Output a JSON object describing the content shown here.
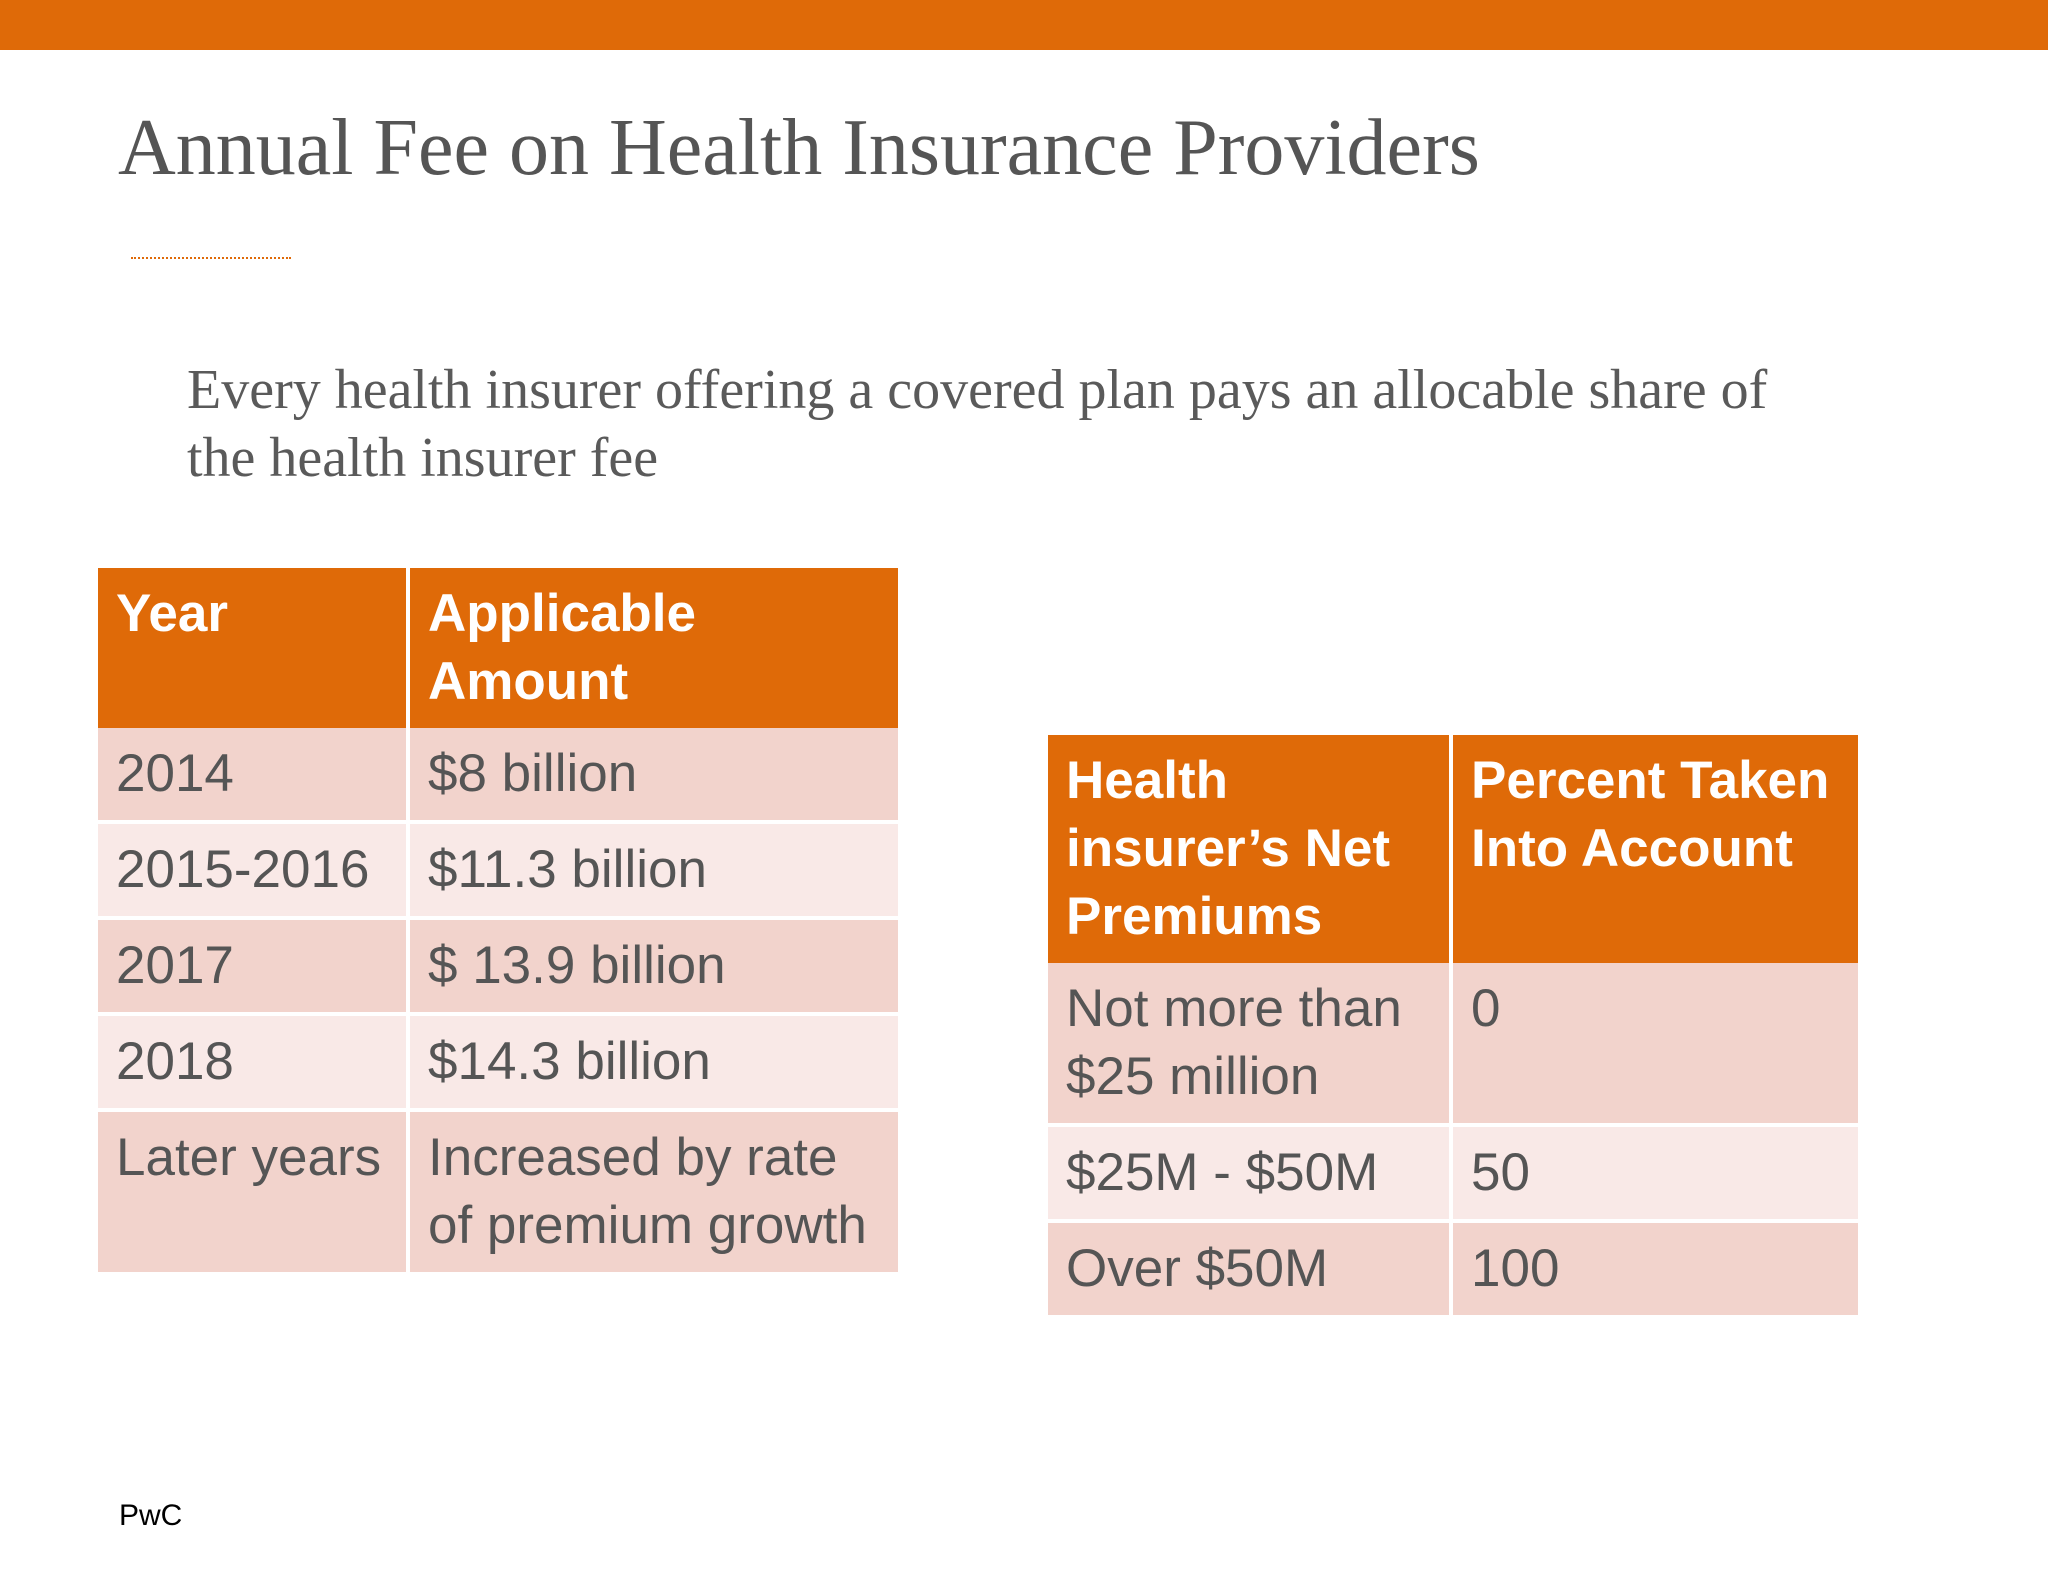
{
  "slide": {
    "title": "Annual Fee on Health Insurance Providers",
    "subtitle": "Every health insurer offering a covered plan pays an allocable share of the health insurer fee",
    "footer": "PwC"
  },
  "colors": {
    "accent": "#df6a08",
    "row_dark": "#f2d3cc",
    "row_light": "#f9e9e7",
    "text": "#555555"
  },
  "fee_table": {
    "headers": [
      "Year",
      "Applicable Amount"
    ],
    "rows": [
      [
        "2014",
        "$8 billion"
      ],
      [
        "2015-2016",
        "$11.3 billion"
      ],
      [
        "2017",
        "$ 13.9 billion"
      ],
      [
        "2018",
        "$14.3 billion"
      ],
      [
        "Later years",
        "Increased by rate of premium growth"
      ]
    ]
  },
  "premium_table": {
    "headers": [
      "Health insurer’s Net Premiums",
      "Percent Taken Into Account"
    ],
    "rows": [
      [
        "Not more than $25 million",
        "0"
      ],
      [
        "$25M - $50M",
        "50"
      ],
      [
        "Over $50M",
        "100"
      ]
    ]
  }
}
